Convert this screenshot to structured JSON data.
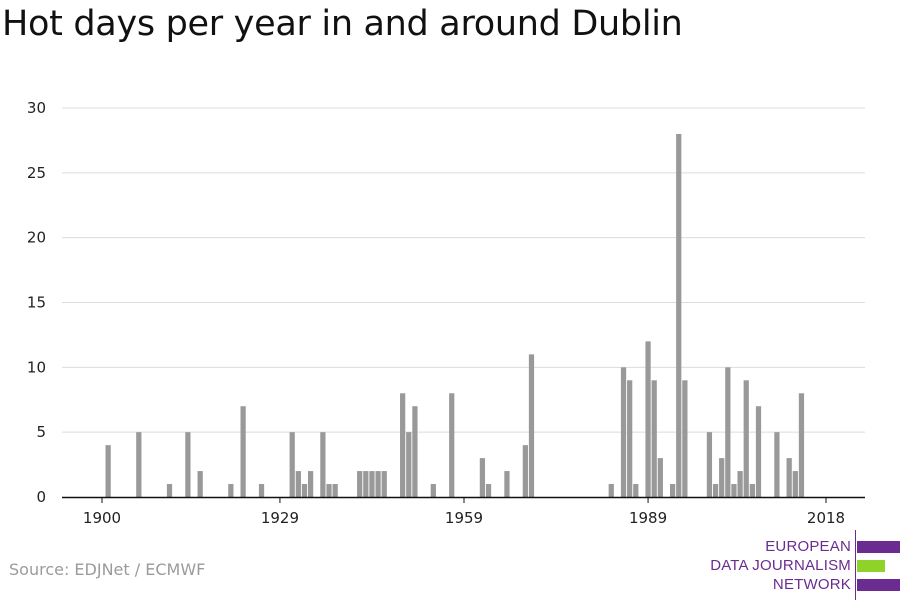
{
  "title": "Hot days per year in and around Dublin",
  "source": "Source: EDJNet / ECMWF",
  "logo": {
    "line1": "EUROPEAN",
    "line2": "DATA JOURNALISM",
    "line3": "NETWORK",
    "colors": {
      "purple": "#6a2c90",
      "green": "#8fd32a"
    }
  },
  "colors": {
    "bar": "#999999",
    "grid": "#dcdcdc",
    "axis": "#111111",
    "text": "#222222"
  },
  "chart_data": {
    "type": "bar",
    "title": "Hot days per year in and around Dublin",
    "xlabel": "",
    "ylabel": "",
    "ylim": [
      0,
      30
    ],
    "yticks": [
      0,
      5,
      10,
      15,
      20,
      25,
      30
    ],
    "xticks": [
      1900,
      1929,
      1959,
      1989,
      2018
    ],
    "grid": true,
    "x": [
      1900,
      1901,
      1906,
      1911,
      1914,
      1916,
      1921,
      1923,
      1924,
      1926,
      1931,
      1932,
      1933,
      1934,
      1936,
      1937,
      1938,
      1942,
      1943,
      1944,
      1945,
      1946,
      1947,
      1949,
      1950,
      1951,
      1954,
      1957,
      1959,
      1962,
      1963,
      1966,
      1969,
      1970,
      1983,
      1985,
      1986,
      1987,
      1989,
      1990,
      1991,
      1993,
      1994,
      1995,
      1999,
      2000,
      2001,
      2002,
      2003,
      2004,
      2005,
      2006,
      2007,
      2010,
      2012,
      2013,
      2014,
      2016,
      2018,
      2019
    ],
    "values": [
      0,
      4,
      5,
      1,
      5,
      2,
      1,
      7,
      0,
      1,
      5,
      2,
      1,
      2,
      5,
      1,
      1,
      2,
      2,
      2,
      2,
      2,
      0,
      8,
      5,
      7,
      1,
      8,
      0,
      3,
      1,
      2,
      4,
      11,
      1,
      10,
      9,
      1,
      12,
      9,
      3,
      1,
      28,
      9,
      5,
      1,
      3,
      10,
      1,
      2,
      9,
      1,
      7,
      5,
      3,
      2,
      8,
      0,
      0,
      0
    ]
  }
}
